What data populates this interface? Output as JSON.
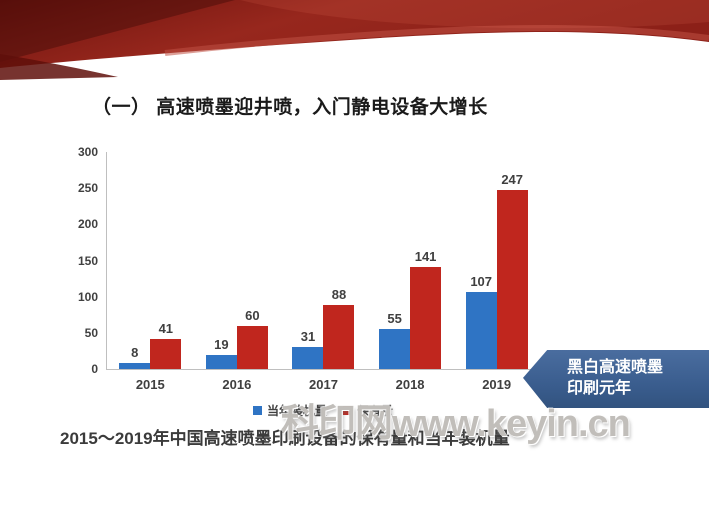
{
  "slide": {
    "title": "（一） 高速喷墨迎井喷，入门静电设备大增长",
    "caption": "2015～2019年中国高速喷墨印刷设备的保有量和当年装机量",
    "watermark": "科印网www.keyin.cn",
    "callout": {
      "line1": "黑白高速喷墨",
      "line2": "印刷元年",
      "color": "#3a5d8e"
    }
  },
  "chart_data": {
    "type": "bar",
    "categories": [
      "2015",
      "2016",
      "2017",
      "2018",
      "2019"
    ],
    "series": [
      {
        "name": "当年装机量",
        "color": "#2f74c4",
        "values": [
          8,
          19,
          31,
          55,
          107
        ]
      },
      {
        "name": "保有量",
        "color": "#c0261e",
        "values": [
          41,
          60,
          88,
          141,
          247
        ]
      }
    ],
    "title": "",
    "xlabel": "",
    "ylabel": "",
    "ylim": [
      0,
      300
    ],
    "yticks": [
      0,
      50,
      100,
      150,
      200,
      250,
      300
    ],
    "grid": false,
    "legend_position": "bottom"
  },
  "theme": {
    "header_red_dark": "#6e130e",
    "header_red": "#9c2a1f",
    "header_red_light": "#c05144",
    "axis_color": "#bfbfbf",
    "label_color": "#3f3f3f"
  }
}
